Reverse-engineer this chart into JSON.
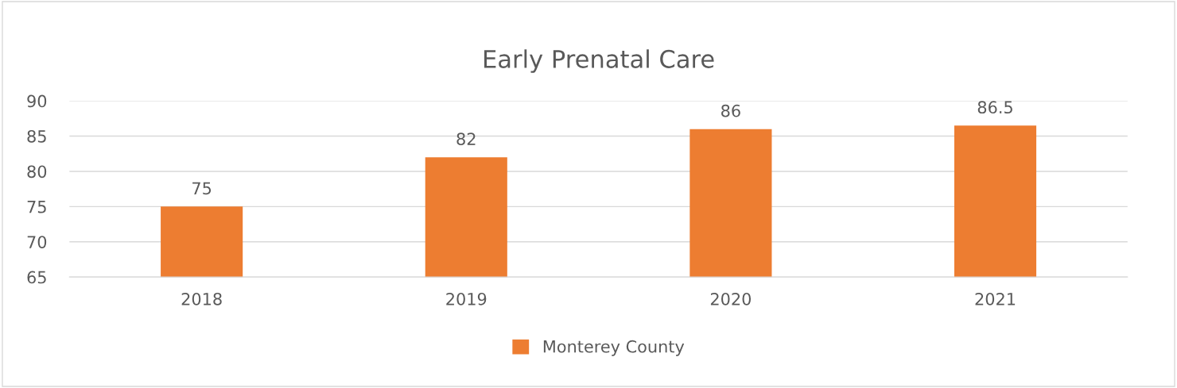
{
  "chart_data": {
    "type": "bar",
    "title": "Early Prenatal Care",
    "categories": [
      "2018",
      "2019",
      "2020",
      "2021"
    ],
    "series": [
      {
        "name": "Monterey County",
        "color": "#ed7d31",
        "values": [
          75,
          82,
          86,
          86.5
        ]
      }
    ],
    "ylim": [
      65,
      90
    ],
    "yticks": [
      65,
      70,
      75,
      80,
      85,
      90
    ],
    "grid": "y",
    "legend": "bottom",
    "data_labels": true
  }
}
